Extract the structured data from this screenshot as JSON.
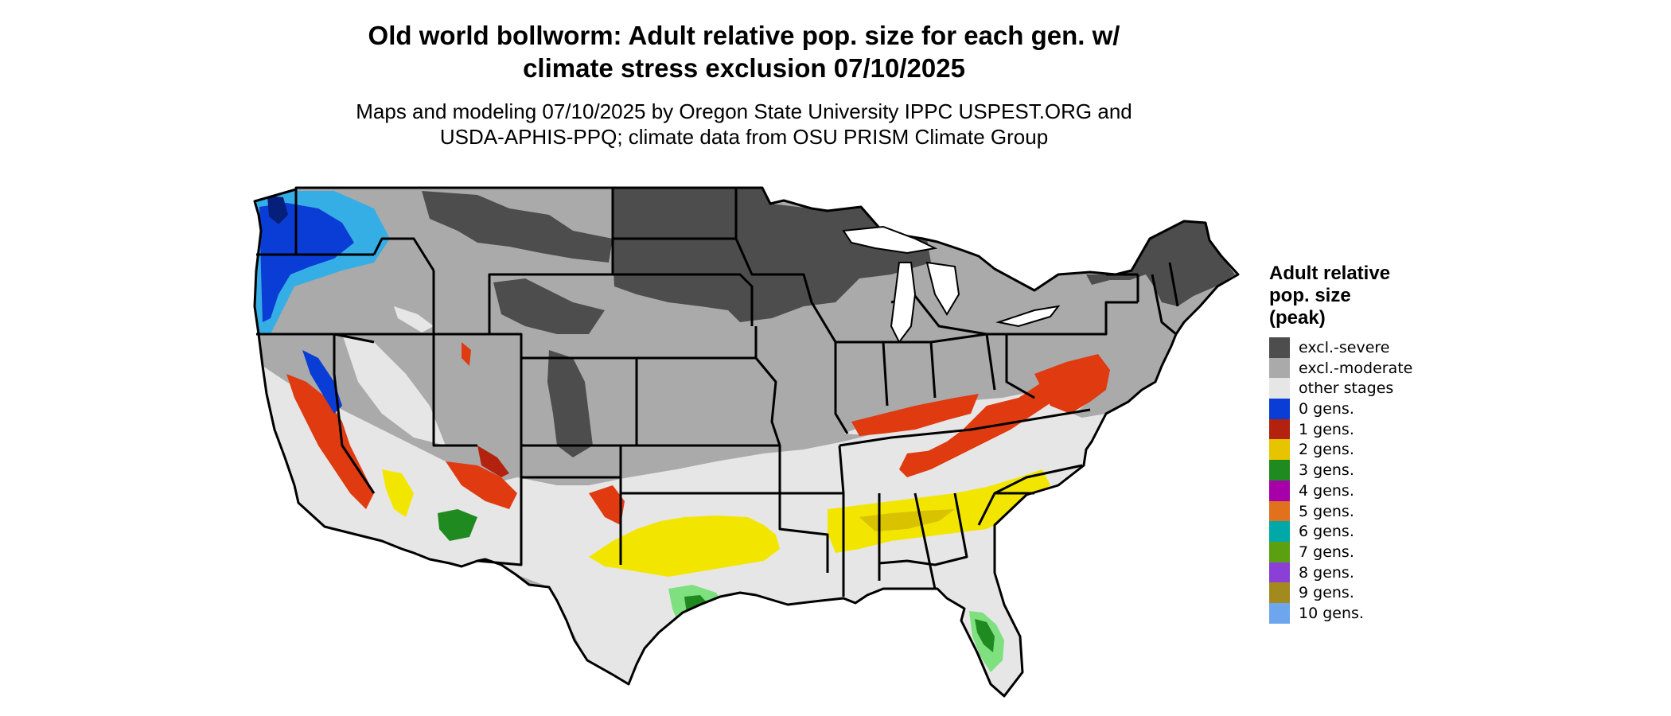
{
  "title_line1": "Old world bollworm: Adult relative pop. size for each gen. w/",
  "title_line2": "climate stress exclusion 07/10/2025",
  "subtitle_line1": "Maps and modeling 07/10/2025 by Oregon State University IPPC USPEST.ORG and",
  "subtitle_line2": "USDA-APHIS-PPQ; climate data from OSU PRISM Climate Group",
  "legend": {
    "title_lines": [
      "Adult relative",
      "pop. size",
      "(peak)"
    ],
    "items": [
      {
        "label": "excl.-severe",
        "color": "#4d4d4d"
      },
      {
        "label": "excl.-moderate",
        "color": "#aaaaaa"
      },
      {
        "label": "other stages",
        "color": "#e6e6e6"
      },
      {
        "label": "0 gens.",
        "color": "#0a3dd6"
      },
      {
        "label": "1 gens.",
        "color": "#b3220e"
      },
      {
        "label": "2 gens.",
        "color": "#e6c400"
      },
      {
        "label": "3 gens.",
        "color": "#1f8a1f"
      },
      {
        "label": "4 gens.",
        "color": "#a800a8"
      },
      {
        "label": "5 gens.",
        "color": "#e2711d"
      },
      {
        "label": "6 gens.",
        "color": "#00a8a8"
      },
      {
        "label": "7 gens.",
        "color": "#5aa010"
      },
      {
        "label": "8 gens.",
        "color": "#8a3fd6"
      },
      {
        "label": "9 gens.",
        "color": "#a38a1e"
      },
      {
        "label": "10 gens.",
        "color": "#6ea6ee"
      }
    ]
  },
  "map_colors": {
    "severe": "#4d4d4d",
    "moderate": "#aaaaaa",
    "other": "#e6e6e6",
    "gen0": "#0a3dd6",
    "gen0_light": "#35aee6",
    "gen1": "#e03a10",
    "gen1_dark": "#b3220e",
    "gen2": "#f2e600",
    "gen2_dark": "#d9c200",
    "gen3": "#1f8a1f",
    "gen3_light": "#7ee07e",
    "gen4": "#c000c0"
  }
}
